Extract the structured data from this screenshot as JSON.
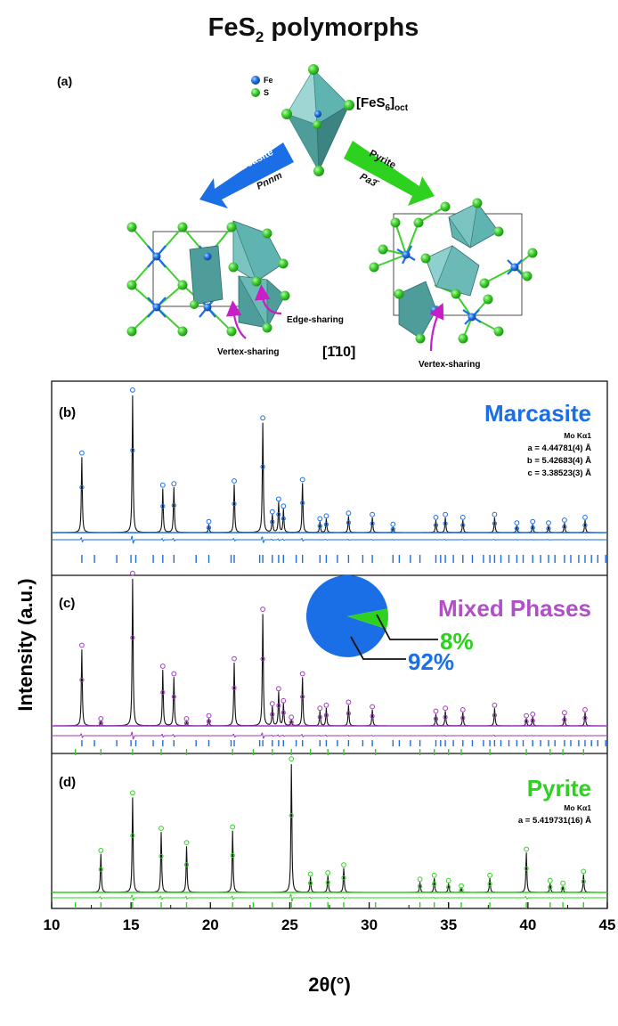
{
  "title": {
    "main": "FeS",
    "sub": "2",
    "rest": " polymorphs"
  },
  "structure": {
    "label": "(a)",
    "legend": [
      {
        "label": "Fe",
        "color": "#1f6fe0"
      },
      {
        "label": "S",
        "color": "#3dcf2c"
      }
    ],
    "octahedron": {
      "main": "[FeS",
      "sub": "6",
      "close": "]",
      "sub2": "oct"
    },
    "marcasite_arrow": {
      "name": "Marcasite",
      "group": "Pnnm",
      "color": "#1a6ee6"
    },
    "pyrite_arrow": {
      "name": "Pyrite",
      "group": "Pa3̄",
      "color": "#2ed11f"
    },
    "edge_sharing": "Edge-sharing",
    "vertex_sharing_left": "Vertex-sharing",
    "vertex_sharing_right": "Vertex-sharing",
    "direction": "[1̄10]",
    "polyhedron_color": "#5fb3b0",
    "annotation_arrow_color": "#c81ec8"
  },
  "y_axis_label": "Intensity (a.u.)",
  "x_axis_label": "2θ(°)",
  "chart_data": {
    "type": "line",
    "xlim": [
      10,
      45
    ],
    "x_ticks": [
      10,
      15,
      20,
      25,
      30,
      35,
      40,
      45
    ],
    "grid": false,
    "panels": [
      {
        "label": "(b)",
        "title": "Marcasite",
        "title_color": "#1a6ee6",
        "obs_color": "#1a6ee6",
        "params": [
          "Mo Kα1",
          "a = 4.44781(4) Å",
          "b = 5.42683(4) Å",
          "c = 3.38523(3) Å"
        ],
        "peaks": [
          {
            "x": 11.9,
            "y": 0.55
          },
          {
            "x": 15.1,
            "y": 1.0
          },
          {
            "x": 17.0,
            "y": 0.32
          },
          {
            "x": 17.7,
            "y": 0.33
          },
          {
            "x": 19.9,
            "y": 0.06
          },
          {
            "x": 21.5,
            "y": 0.35
          },
          {
            "x": 23.3,
            "y": 0.8
          },
          {
            "x": 23.9,
            "y": 0.13
          },
          {
            "x": 24.3,
            "y": 0.22
          },
          {
            "x": 24.6,
            "y": 0.17
          },
          {
            "x": 25.8,
            "y": 0.36
          },
          {
            "x": 26.9,
            "y": 0.08
          },
          {
            "x": 27.3,
            "y": 0.1
          },
          {
            "x": 28.7,
            "y": 0.12
          },
          {
            "x": 30.2,
            "y": 0.11
          },
          {
            "x": 31.5,
            "y": 0.04
          },
          {
            "x": 34.2,
            "y": 0.09
          },
          {
            "x": 34.8,
            "y": 0.11
          },
          {
            "x": 35.9,
            "y": 0.09
          },
          {
            "x": 37.9,
            "y": 0.11
          },
          {
            "x": 39.3,
            "y": 0.05
          },
          {
            "x": 40.3,
            "y": 0.06
          },
          {
            "x": 41.3,
            "y": 0.05
          },
          {
            "x": 42.3,
            "y": 0.07
          },
          {
            "x": 43.6,
            "y": 0.09
          }
        ],
        "ticks_1": [
          11.9,
          12.7,
          14.1,
          15.0,
          15.3,
          16.4,
          17.0,
          17.7,
          19.1,
          19.9,
          21.3,
          21.5,
          23.1,
          23.3,
          23.9,
          24.3,
          24.6,
          25.4,
          25.8,
          26.9,
          27.3,
          28.0,
          28.7,
          29.6,
          30.2,
          31.5,
          31.9,
          32.6,
          33.2,
          34.2,
          34.5,
          34.8,
          35.3,
          35.9,
          36.5,
          37.2,
          37.6,
          37.9,
          38.3,
          38.8,
          39.3,
          39.7,
          40.3,
          40.8,
          41.3,
          41.7,
          42.3,
          42.7,
          43.2,
          43.6,
          44.0,
          44.4,
          44.9
        ],
        "ticks_2": []
      },
      {
        "label": "(c)",
        "title": "Mixed Phases",
        "title_color": "#b04fc8",
        "obs_color": "#a239c0",
        "params": [],
        "pie": {
          "values": [
            92,
            8
          ],
          "labels": [
            "92%",
            "8%"
          ],
          "colors": [
            "#1a6ee6",
            "#2ed11f"
          ]
        },
        "peaks": [
          {
            "x": 11.9,
            "y": 0.52
          },
          {
            "x": 13.1,
            "y": 0.03
          },
          {
            "x": 15.1,
            "y": 1.0
          },
          {
            "x": 17.0,
            "y": 0.38
          },
          {
            "x": 17.7,
            "y": 0.33
          },
          {
            "x": 18.5,
            "y": 0.03
          },
          {
            "x": 19.9,
            "y": 0.05
          },
          {
            "x": 21.5,
            "y": 0.43
          },
          {
            "x": 23.3,
            "y": 0.76
          },
          {
            "x": 23.9,
            "y": 0.13
          },
          {
            "x": 24.3,
            "y": 0.23
          },
          {
            "x": 24.6,
            "y": 0.15
          },
          {
            "x": 25.1,
            "y": 0.04
          },
          {
            "x": 25.8,
            "y": 0.33
          },
          {
            "x": 26.9,
            "y": 0.1
          },
          {
            "x": 27.3,
            "y": 0.12
          },
          {
            "x": 28.7,
            "y": 0.14
          },
          {
            "x": 30.2,
            "y": 0.11
          },
          {
            "x": 34.2,
            "y": 0.08
          },
          {
            "x": 34.8,
            "y": 0.1
          },
          {
            "x": 35.9,
            "y": 0.09
          },
          {
            "x": 37.9,
            "y": 0.12
          },
          {
            "x": 39.9,
            "y": 0.05
          },
          {
            "x": 40.3,
            "y": 0.06
          },
          {
            "x": 42.3,
            "y": 0.07
          },
          {
            "x": 43.6,
            "y": 0.09
          }
        ],
        "ticks_1": [
          11.9,
          12.7,
          14.1,
          15.0,
          15.3,
          16.4,
          17.0,
          17.7,
          19.1,
          19.9,
          21.3,
          21.5,
          23.1,
          23.3,
          23.9,
          24.3,
          24.6,
          25.4,
          25.8,
          26.9,
          27.3,
          28.0,
          28.7,
          29.6,
          30.2,
          31.5,
          31.9,
          32.6,
          33.2,
          34.2,
          34.5,
          34.8,
          35.3,
          35.9,
          36.5,
          37.2,
          37.6,
          37.9,
          38.3,
          38.8,
          39.3,
          39.7,
          40.3,
          40.8,
          41.3,
          41.7,
          42.3,
          42.7,
          43.2,
          43.6,
          44.0,
          44.4,
          44.9
        ],
        "ticks_2": [
          11.5,
          13.1,
          15.1,
          16.9,
          18.5,
          21.4,
          22.7,
          23.9,
          25.1,
          26.3,
          27.4,
          28.4,
          30.4,
          33.2,
          34.1,
          35.0,
          35.8,
          37.6,
          39.9,
          41.4,
          42.2,
          43.5
        ]
      },
      {
        "label": "(d)",
        "title": "Pyrite",
        "title_color": "#2ed11f",
        "obs_color": "#2ed11f",
        "params": [
          "Mo Kα1",
          "a = 5.419731(16) Å"
        ],
        "peaks": [
          {
            "x": 13.1,
            "y": 0.3
          },
          {
            "x": 15.1,
            "y": 0.74
          },
          {
            "x": 16.9,
            "y": 0.47
          },
          {
            "x": 18.5,
            "y": 0.36
          },
          {
            "x": 21.4,
            "y": 0.48
          },
          {
            "x": 25.1,
            "y": 1.0
          },
          {
            "x": 26.3,
            "y": 0.12
          },
          {
            "x": 27.4,
            "y": 0.13
          },
          {
            "x": 28.4,
            "y": 0.19
          },
          {
            "x": 33.2,
            "y": 0.08
          },
          {
            "x": 34.1,
            "y": 0.11
          },
          {
            "x": 35.0,
            "y": 0.07
          },
          {
            "x": 35.8,
            "y": 0.03
          },
          {
            "x": 37.6,
            "y": 0.11
          },
          {
            "x": 39.9,
            "y": 0.31
          },
          {
            "x": 41.4,
            "y": 0.07
          },
          {
            "x": 42.2,
            "y": 0.05
          },
          {
            "x": 43.5,
            "y": 0.14
          }
        ],
        "ticks_1": [
          11.5,
          13.1,
          15.1,
          16.9,
          18.5,
          21.4,
          22.7,
          23.9,
          25.1,
          26.3,
          27.4,
          28.4,
          30.4,
          33.2,
          34.1,
          35.0,
          35.8,
          37.6,
          39.9,
          41.4,
          42.2,
          43.5
        ],
        "ticks_2": []
      }
    ]
  }
}
